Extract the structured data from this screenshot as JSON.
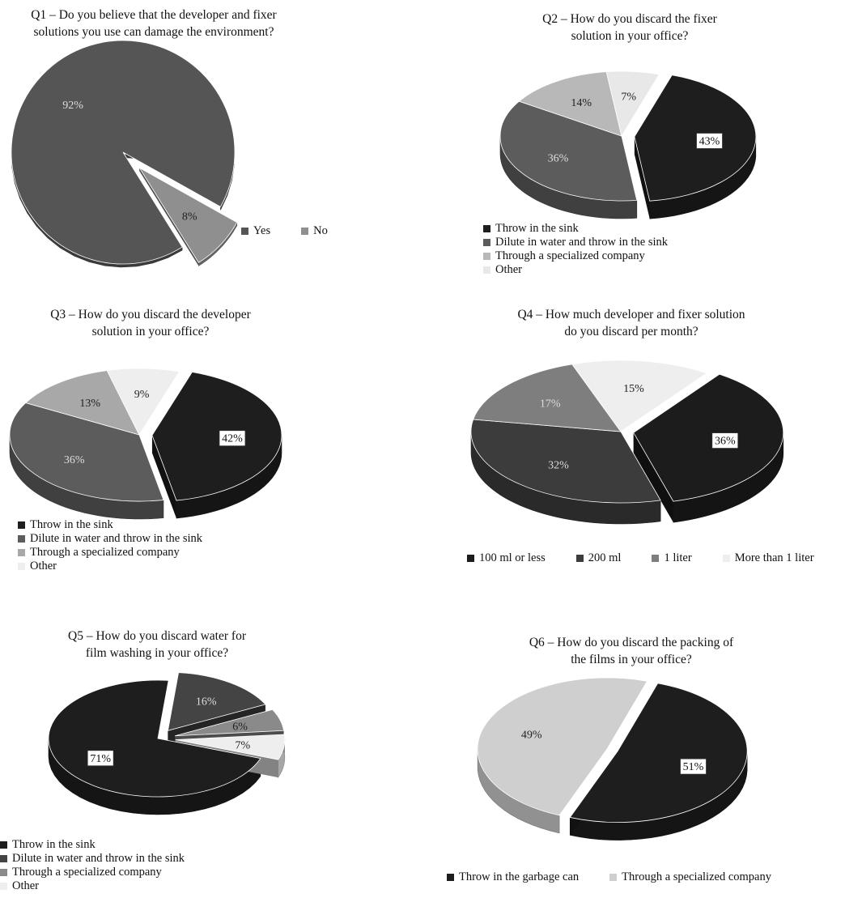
{
  "chart_data": [
    {
      "type": "pie",
      "title": "Q1 – Do you believe that the developer and fixer solutions you use can damage the environment?",
      "categories": [
        "Yes",
        "No"
      ],
      "values": [
        92,
        8
      ],
      "labels": [
        "92%",
        "8%"
      ],
      "colors": [
        "#555555",
        "#8f8f8f"
      ],
      "exploded": [
        false,
        true
      ],
      "boxed": [
        false,
        false
      ],
      "legend": "bottom-right"
    },
    {
      "type": "pie",
      "title": "Q2 – How do you discard the fixer solution in your office?",
      "categories": [
        "Throw in the sink",
        "Dilute in water and throw in the sink",
        "Through a specialized company",
        "Other"
      ],
      "values": [
        43,
        36,
        14,
        7
      ],
      "labels": [
        "43%",
        "36%",
        "14%",
        "7%"
      ],
      "colors": [
        "#1e1e1e",
        "#5c5c5c",
        "#b8b8b8",
        "#e8e8e8"
      ],
      "exploded": [
        true,
        false,
        false,
        false
      ],
      "boxed": [
        true,
        false,
        false,
        false
      ],
      "legend": "bottom-left"
    },
    {
      "type": "pie",
      "title": "Q3 – How do you discard the developer solution in your office?",
      "categories": [
        "Throw in the sink",
        "Dilute in water and throw in the sink",
        "Through a specialized company",
        "Other"
      ],
      "values": [
        42,
        36,
        13,
        9
      ],
      "labels": [
        "42%",
        "36%",
        "13%",
        "9%"
      ],
      "colors": [
        "#1e1e1e",
        "#5c5c5c",
        "#a8a8a8",
        "#eeeeee"
      ],
      "exploded": [
        true,
        false,
        false,
        false
      ],
      "boxed": [
        true,
        false,
        false,
        false
      ],
      "legend": "bottom-left"
    },
    {
      "type": "pie",
      "title": "Q4 – How much developer and fixer solution do you discard per month?",
      "categories": [
        "100 ml or less",
        "200 ml",
        "1 liter",
        "More than 1 liter"
      ],
      "values": [
        36,
        32,
        17,
        15
      ],
      "labels": [
        "36%",
        "32%",
        "17%",
        "15%"
      ],
      "colors": [
        "#1c1c1c",
        "#3c3c3c",
        "#7e7e7e",
        "#eeeeee"
      ],
      "exploded": [
        true,
        false,
        false,
        false
      ],
      "boxed": [
        true,
        false,
        false,
        false
      ],
      "legend": "bottom"
    },
    {
      "type": "pie",
      "title": "Q5 – How do you discard water for film washing in your office?",
      "categories": [
        "Throw in the sink",
        "Dilute in water and throw in the sink",
        "Through a specialized company",
        "Other"
      ],
      "values": [
        71,
        16,
        6,
        7
      ],
      "labels": [
        "71%",
        "16%",
        "6%",
        "7%"
      ],
      "colors": [
        "#1e1e1e",
        "#444444",
        "#8a8a8a",
        "#eeeeee"
      ],
      "exploded": [
        false,
        true,
        true,
        true
      ],
      "boxed": [
        true,
        false,
        false,
        false
      ],
      "legend": "bottom-left"
    },
    {
      "type": "pie",
      "title": "Q6 – How do you discard the packing of the films in your office?",
      "categories": [
        "Throw in the garbage can",
        "Through a specialized company"
      ],
      "values": [
        51,
        49
      ],
      "labels": [
        "51%",
        "49%"
      ],
      "colors": [
        "#1e1e1e",
        "#cfcfcf"
      ],
      "exploded": [
        true,
        false
      ],
      "boxed": [
        true,
        false
      ],
      "legend": "bottom"
    }
  ]
}
